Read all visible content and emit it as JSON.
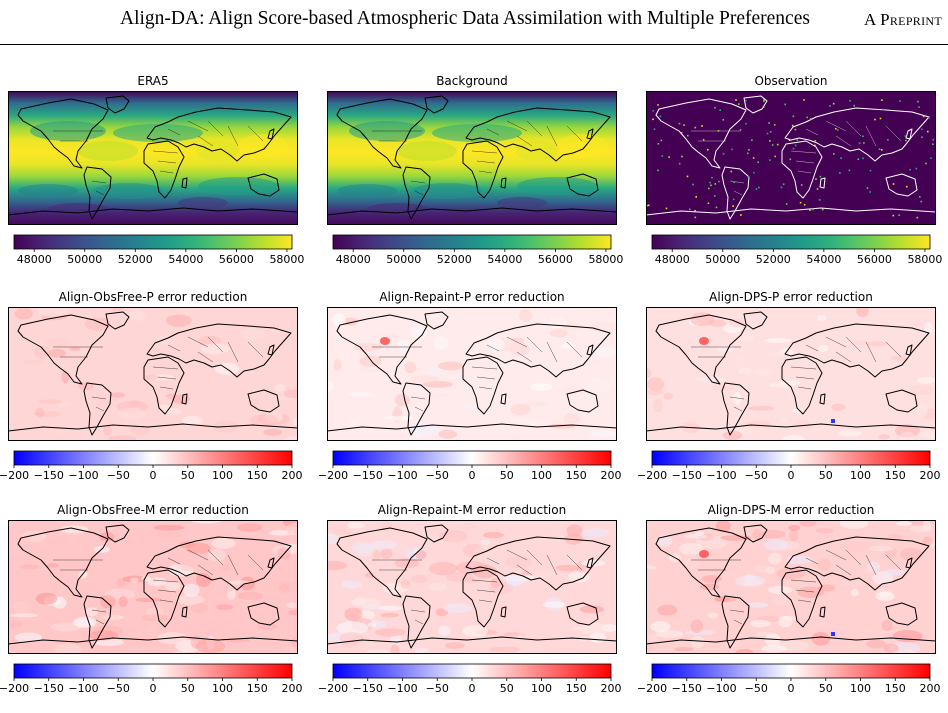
{
  "page": {
    "header_title": "Align-DA: Align Score-based Atmospheric Data Assimilation with Multiple Preferences",
    "header_tag": "A Preprint"
  },
  "colorbars": {
    "value": {
      "ticks": [
        "48000",
        "50000",
        "52000",
        "54000",
        "56000",
        "58000"
      ],
      "min": 47200,
      "max": 58200,
      "colormap": "viridis"
    },
    "diff": {
      "ticks": [
        "−200",
        "−150",
        "−100",
        "−50",
        "0",
        "50",
        "100",
        "150",
        "200"
      ],
      "min": -200,
      "max": 200,
      "colormap": "bwr"
    }
  },
  "panels": [
    {
      "title": "ERA5",
      "kind": "value"
    },
    {
      "title": "Background",
      "kind": "value"
    },
    {
      "title": "Observation",
      "kind": "obs"
    },
    {
      "title": "Align-ObsFree-P error reduction",
      "kind": "diff",
      "intensity": 0.16
    },
    {
      "title": "Align-Repaint-P error reduction",
      "kind": "diff",
      "intensity": 0.08
    },
    {
      "title": "Align-DPS-P error reduction",
      "kind": "diff",
      "intensity": 0.12
    },
    {
      "title": "Align-ObsFree-M error reduction",
      "kind": "diff",
      "intensity": 0.22
    },
    {
      "title": "Align-Repaint-M error reduction",
      "kind": "diff",
      "intensity": 0.15
    },
    {
      "title": "Align-DPS-M error reduction",
      "kind": "diff",
      "intensity": 0.18
    }
  ]
}
